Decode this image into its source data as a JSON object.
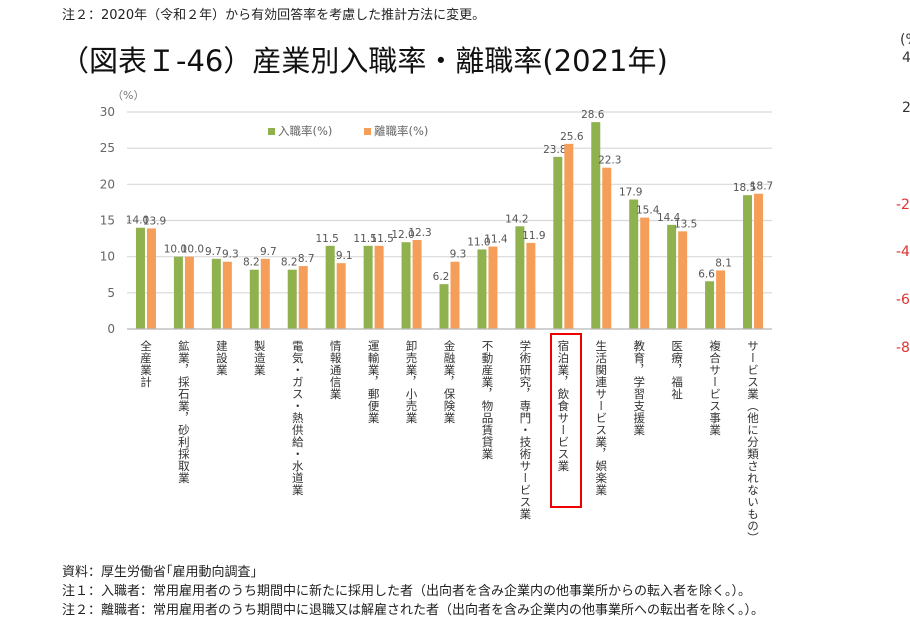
{
  "top_note": "注２：2020年（令和２年）から有効回答率を考慮した推計方法に変更。",
  "title": "（図表Ｉ-46）産業別入職率・離職率(2021年)",
  "footer": [
    "資料：厚生労働省｢雇用動向調査｣",
    "注１：入職者：常用雇用者のうち期間中に新たに採用した者（出向者を含み企業内の他事業所からの転入者を除く。）。",
    "注２：離職者：常用雇用者のうち期間中に退職又は解雇された者（出向者を含み企業内の他事業所への転出者を除く。）。"
  ],
  "right_edge_fragments": [
    "(%",
    "4",
    "2",
    "-2",
    "-4",
    "-6",
    "-8"
  ],
  "colors": {
    "entry": "#8fb24e",
    "exit": "#f59e5a",
    "highlight": "#e00000",
    "grid": "#d9d9d9"
  },
  "chart_data": {
    "type": "bar",
    "title": "（図表Ｉ-46）産業別入職率・離職率(2021年)",
    "ylabel": "（%）",
    "ylim": [
      0,
      30
    ],
    "yticks": [
      0,
      5,
      10,
      15,
      20,
      25,
      30
    ],
    "grid": true,
    "legend_position": "top-center",
    "highlighted_category": "宿泊業，飲食サービス業",
    "categories": [
      "全産業計",
      "鉱業，採石業，砂利採取業",
      "建設業",
      "製造業",
      "電気・ガス・熱供給・水道業",
      "情報通信業",
      "運輸業，郵便業",
      "卸売業，小売業",
      "金融業，保険業",
      "不動産業，物品賃貸業",
      "学術研究，専門・技術サービス業",
      "宿泊業，飲食サービス業",
      "生活関連サービス業，娯楽業",
      "教育，学習支援業",
      "医療，福祉",
      "複合サービス事業",
      "サービス業（他に分類されないもの）"
    ],
    "series": [
      {
        "name": "入職率(%)",
        "values": [
          14.0,
          10.0,
          9.7,
          8.2,
          8.2,
          11.5,
          11.5,
          12.0,
          6.2,
          11.0,
          14.2,
          23.8,
          28.6,
          17.9,
          14.4,
          6.6,
          18.5
        ]
      },
      {
        "name": "離職率(%)",
        "values": [
          13.9,
          10.0,
          9.3,
          9.7,
          8.7,
          9.1,
          11.5,
          12.3,
          9.3,
          11.4,
          11.9,
          25.6,
          22.3,
          15.4,
          13.5,
          8.1,
          18.7
        ]
      }
    ]
  }
}
